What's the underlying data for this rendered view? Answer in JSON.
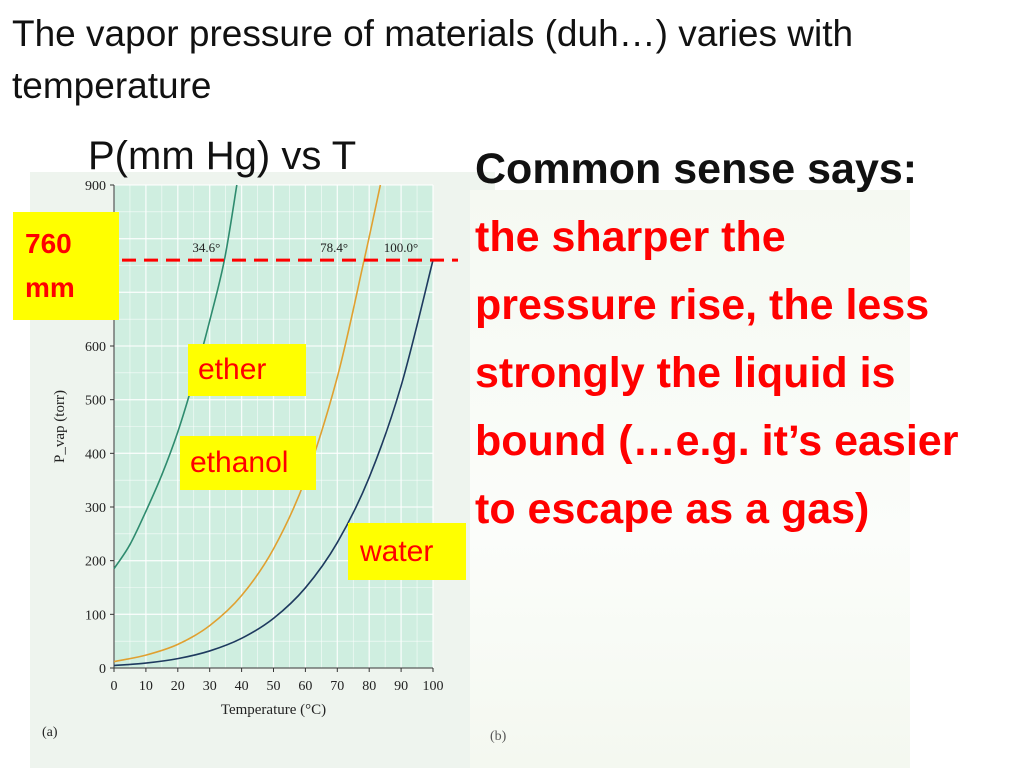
{
  "slide": {
    "title": "The vapor pressure of materials (duh…) varies with temperature",
    "chart_heading": "P(mm Hg) vs T",
    "right_heading": "Common sense says:",
    "right_lines": [
      "the sharper the",
      "pressure rise, the less",
      "strongly the liquid is",
      "bound (…e.g. it’s easier",
      "to escape as a gas)"
    ],
    "callout_760_line1": "760",
    "callout_760_line2": "mm",
    "label_ether": "ether",
    "label_ethanol": "ethanol",
    "label_water": "water",
    "panel_a": "(a)",
    "panel_b": "(b)",
    "colors": {
      "accent_red": "#ff0000",
      "callout_yellow": "#ffff00",
      "plot_bg": "#cfeee0",
      "grid": "#ffffff"
    }
  },
  "chart_data": {
    "type": "line",
    "xlabel": "Temperature (°C)",
    "ylabel": "P_vap (torr)",
    "xlim": [
      0,
      100
    ],
    "ylim": [
      0,
      900
    ],
    "xticks": [
      0,
      10,
      20,
      30,
      40,
      50,
      60,
      70,
      80,
      90,
      100
    ],
    "yticks": [
      0,
      100,
      200,
      300,
      400,
      500,
      600,
      700,
      800,
      900
    ],
    "grid": true,
    "reference_line": {
      "y": 760,
      "style": "dashed",
      "color": "#ff0000"
    },
    "boiling_annotations": [
      "34.6°",
      "78.4°",
      "100.0°"
    ],
    "series": [
      {
        "color": "#2e8b6e",
        "x": [
          0,
          5,
          10,
          15,
          20,
          25,
          30,
          34.6,
          38.5
        ],
        "y": [
          185,
          230,
          292,
          360,
          440,
          537,
          647,
          760,
          900
        ]
      },
      {
        "color": "#e0a030",
        "x": [
          0,
          10,
          20,
          30,
          40,
          50,
          60,
          70,
          78.4,
          83.5
        ],
        "y": [
          12,
          24,
          44,
          79,
          135,
          222,
          352,
          542,
          760,
          900
        ]
      },
      {
        "color": "#1e3a5f",
        "x": [
          0,
          10,
          20,
          30,
          40,
          50,
          60,
          70,
          80,
          90,
          100
        ],
        "y": [
          4.6,
          9.2,
          17.5,
          31.8,
          55.3,
          92.5,
          149.4,
          233.7,
          355.1,
          525.8,
          760
        ]
      }
    ]
  }
}
